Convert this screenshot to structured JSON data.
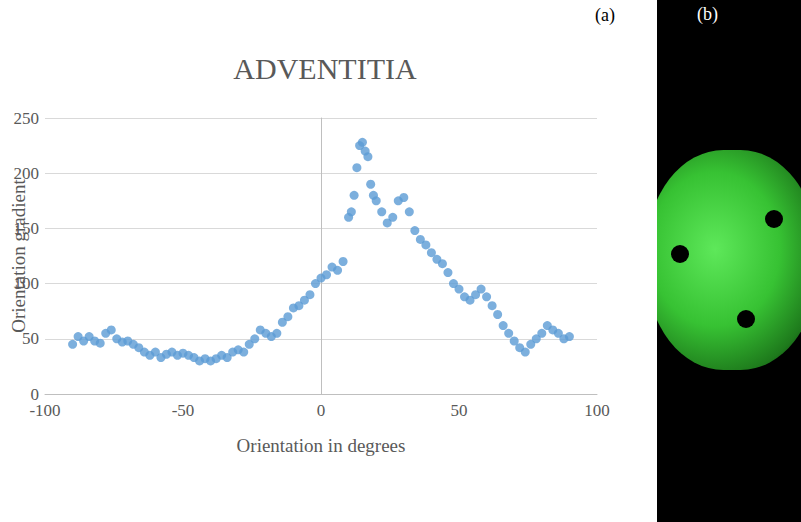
{
  "chart_data": {
    "type": "scatter",
    "title": "ADVENTITIA",
    "x_label": "Orientation in degrees",
    "y_label": "Orientation gradient",
    "annotations": [
      "(a)",
      "(b)"
    ],
    "color": "#5b9bd5",
    "marker": "circle",
    "grid": true,
    "xlim": [
      -100,
      100
    ],
    "xticks": [
      -100,
      -50,
      0,
      50,
      100
    ],
    "ylim": [
      0,
      250
    ],
    "yticks": [
      0,
      50,
      100,
      150,
      200,
      250
    ],
    "x": [
      -90,
      -88,
      -86,
      -84,
      -82,
      -80,
      -78,
      -76,
      -74,
      -72,
      -70,
      -68,
      -66,
      -64,
      -62,
      -60,
      -58,
      -56,
      -54,
      -52,
      -50,
      -48,
      -46,
      -44,
      -42,
      -40,
      -38,
      -36,
      -34,
      -32,
      -30,
      -28,
      -26,
      -24,
      -22,
      -20,
      -18,
      -16,
      -14,
      -12,
      -10,
      -8,
      -6,
      -4,
      -2,
      0,
      2,
      4,
      6,
      8,
      10,
      11,
      12,
      13,
      14,
      15,
      16,
      17,
      18,
      19,
      20,
      22,
      24,
      26,
      28,
      30,
      32,
      34,
      36,
      38,
      40,
      42,
      44,
      46,
      48,
      50,
      52,
      54,
      56,
      58,
      60,
      62,
      64,
      66,
      68,
      70,
      72,
      74,
      76,
      78,
      80,
      82,
      84,
      86,
      88,
      90
    ],
    "values": [
      45,
      52,
      48,
      52,
      48,
      46,
      55,
      58,
      50,
      47,
      48,
      45,
      42,
      38,
      35,
      38,
      33,
      36,
      38,
      35,
      37,
      35,
      33,
      30,
      32,
      30,
      32,
      35,
      33,
      38,
      40,
      38,
      45,
      50,
      58,
      55,
      52,
      55,
      65,
      70,
      78,
      80,
      85,
      90,
      100,
      105,
      108,
      115,
      112,
      120,
      160,
      165,
      180,
      205,
      225,
      228,
      220,
      215,
      190,
      180,
      175,
      165,
      155,
      160,
      175,
      178,
      165,
      148,
      140,
      135,
      128,
      122,
      118,
      110,
      100,
      95,
      88,
      85,
      90,
      95,
      88,
      80,
      72,
      62,
      55,
      48,
      42,
      38,
      45,
      50,
      55,
      62,
      58,
      55,
      50,
      52
    ]
  }
}
